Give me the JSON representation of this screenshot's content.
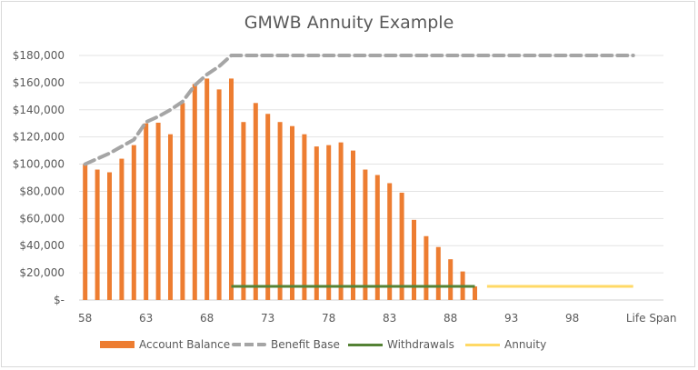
{
  "chart_data": {
    "type": "bar",
    "title": "GMWB Annuity Example",
    "xlabel": "",
    "ylabel": "",
    "ylim": [
      0,
      180000
    ],
    "yticks": [
      0,
      20000,
      40000,
      60000,
      80000,
      100000,
      120000,
      140000,
      160000,
      180000
    ],
    "ytick_labels": [
      "$-",
      "$20,000",
      "$40,000",
      "$60,000",
      "$80,000",
      "$100,000",
      "$120,000",
      "$140,000",
      "$160,000",
      "$180,000"
    ],
    "x": [
      58,
      59,
      60,
      61,
      62,
      63,
      64,
      65,
      66,
      67,
      68,
      69,
      70,
      71,
      72,
      73,
      74,
      75,
      76,
      77,
      78,
      79,
      80,
      81,
      82,
      83,
      84,
      85,
      86,
      87,
      88,
      89,
      90,
      91,
      92,
      93,
      94,
      95,
      96,
      97,
      98,
      99,
      100,
      101,
      102,
      103
    ],
    "xtick_labels": [
      "58",
      "63",
      "68",
      "73",
      "78",
      "83",
      "88",
      "93",
      "98",
      "Life Span"
    ],
    "grid": true,
    "legend_position": "bottom",
    "series": [
      {
        "name": "Account Balance",
        "type": "bar",
        "color": "#ED7D31",
        "values": [
          100000,
          96000,
          94000,
          104000,
          114000,
          130000,
          130500,
          122000,
          145000,
          159000,
          163000,
          155000,
          163000,
          131000,
          145000,
          137000,
          131000,
          128000,
          122000,
          113000,
          114000,
          116000,
          110000,
          96000,
          92000,
          86000,
          79000,
          59000,
          47000,
          39000,
          30000,
          21000,
          10000,
          null,
          null,
          null,
          null,
          null,
          null,
          null,
          null,
          null,
          null,
          null,
          null,
          null
        ]
      },
      {
        "name": "Benefit Base",
        "type": "line",
        "style": "dashed",
        "color": "#A5A5A5",
        "values": [
          100000,
          104000,
          108000,
          113000,
          118000,
          131000,
          135000,
          140000,
          146000,
          158000,
          166000,
          172000,
          180000,
          180000,
          180000,
          180000,
          180000,
          180000,
          180000,
          180000,
          180000,
          180000,
          180000,
          180000,
          180000,
          180000,
          180000,
          180000,
          180000,
          180000,
          180000,
          180000,
          180000,
          180000,
          180000,
          180000,
          180000,
          180000,
          180000,
          180000,
          180000,
          180000,
          180000,
          180000,
          180000,
          180000
        ]
      },
      {
        "name": "Withdrawals",
        "type": "line",
        "color": "#548235",
        "values": [
          null,
          null,
          null,
          null,
          null,
          null,
          null,
          null,
          null,
          null,
          null,
          null,
          10000,
          10000,
          10000,
          10000,
          10000,
          10000,
          10000,
          10000,
          10000,
          10000,
          10000,
          10000,
          10000,
          10000,
          10000,
          10000,
          10000,
          10000,
          10000,
          10000,
          10000,
          null,
          null,
          null,
          null,
          null,
          null,
          null,
          null,
          null,
          null,
          null,
          null,
          null
        ]
      },
      {
        "name": "Annuity",
        "type": "line",
        "color": "#FFD966",
        "values": [
          null,
          null,
          null,
          null,
          null,
          null,
          null,
          null,
          null,
          null,
          null,
          null,
          null,
          null,
          null,
          null,
          null,
          null,
          null,
          null,
          null,
          null,
          null,
          null,
          null,
          null,
          null,
          null,
          null,
          null,
          null,
          null,
          null,
          10000,
          10000,
          10000,
          10000,
          10000,
          10000,
          10000,
          10000,
          10000,
          10000,
          10000,
          10000,
          10000
        ]
      }
    ]
  },
  "legend": {
    "items": [
      {
        "label": "Account Balance"
      },
      {
        "label": "Benefit Base"
      },
      {
        "label": "Withdrawals"
      },
      {
        "label": "Annuity"
      }
    ]
  }
}
